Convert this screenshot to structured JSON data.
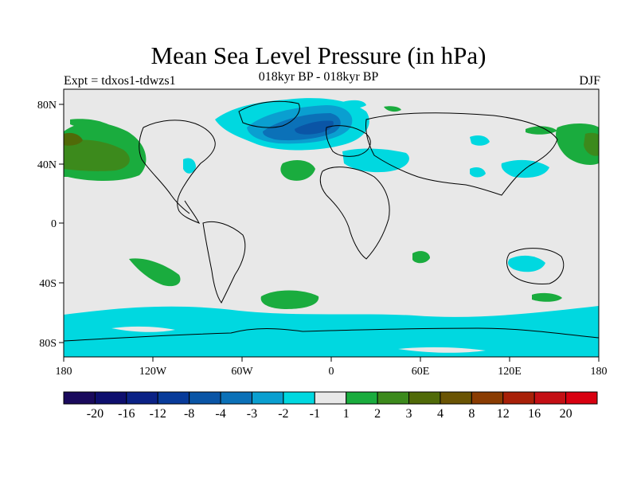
{
  "title": "Mean Sea Level Pressure (in hPa)",
  "subtitle": "018kyr BP - 018kyr BP",
  "left_string": "Expt = tdxos1-tdwzs1",
  "right_string": "DJF",
  "axes": {
    "lon_ticks": [
      "180",
      "120W",
      "60W",
      "0",
      "60E",
      "120E",
      "180"
    ],
    "lat_ticks": [
      "80N",
      "40N",
      "0",
      "40S",
      "80S"
    ]
  },
  "colorbar": {
    "labels": [
      "-20",
      "-16",
      "-12",
      "-8",
      "-4",
      "-3",
      "-2",
      "-1",
      "1",
      "2",
      "3",
      "4",
      "8",
      "12",
      "16",
      "20"
    ],
    "colors": [
      "#1a0a5c",
      "#0e0f6e",
      "#0b2286",
      "#083b9a",
      "#0a55a6",
      "#0b71b8",
      "#0a9fd0",
      "#00d8e0",
      "#e8e8e8",
      "#1aac3e",
      "#3c8a1c",
      "#506a08",
      "#6a5404",
      "#8a3c02",
      "#a82008",
      "#c40f14",
      "#d80010"
    ]
  },
  "colors": {
    "land_bg": "#e8e8e8",
    "neg_1": "#00d8e0",
    "neg_2": "#0a9fd0",
    "neg_3": "#0b71b8",
    "neg_4": "#0a55a6",
    "pos_1": "#1aac3e",
    "pos_2": "#3c8a1c",
    "pos_3": "#506a08"
  }
}
